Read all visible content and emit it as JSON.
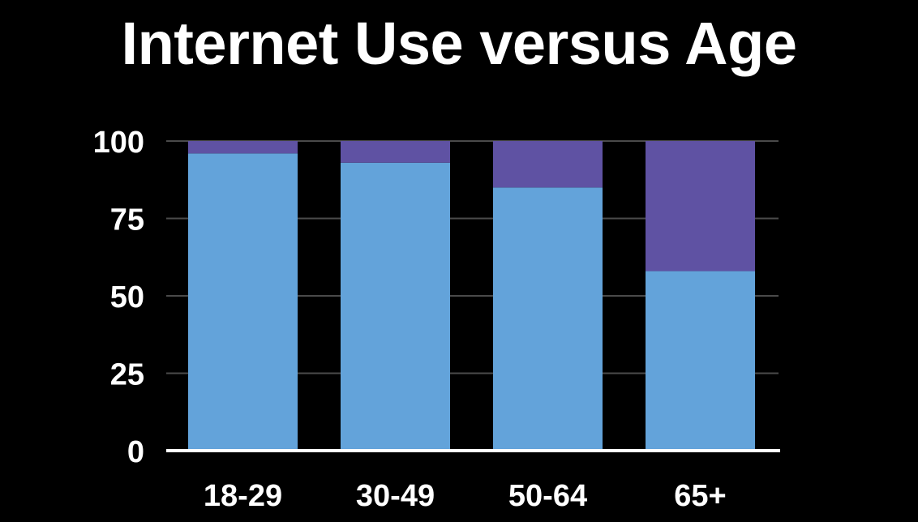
{
  "chart_data": {
    "type": "bar",
    "stacked": true,
    "title": "Internet Use versus Age",
    "xlabel": "",
    "ylabel": "",
    "categories": [
      "18-29",
      "30-49",
      "50-64",
      "65+"
    ],
    "series": [
      {
        "values": [
          96,
          93,
          85,
          58
        ],
        "color": "#63a3da"
      },
      {
        "values": [
          4,
          7,
          15,
          42
        ],
        "color": "#5f52a3"
      }
    ],
    "ylim": [
      0,
      100
    ],
    "yticks": [
      0,
      25,
      50,
      75,
      100
    ],
    "grid": true,
    "legend": "none",
    "colors": {
      "background": "#000000",
      "text": "#ffffff",
      "gridline": "#4a4a4a",
      "axis": "#ffffff"
    }
  }
}
